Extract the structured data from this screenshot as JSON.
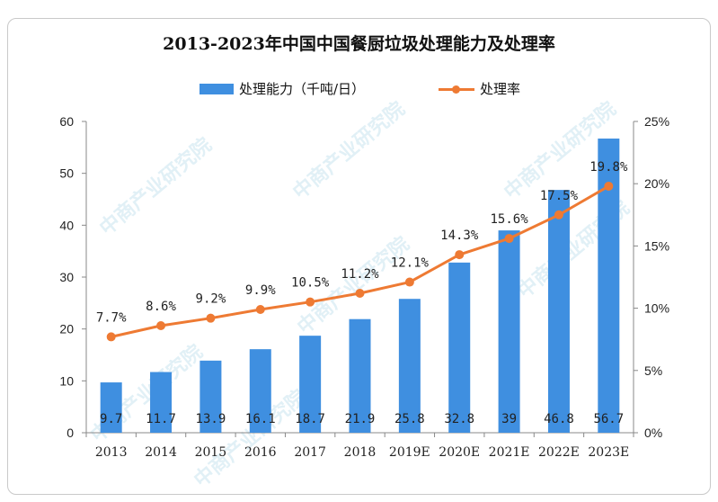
{
  "chart_data": {
    "type": "bar",
    "title": "2013-2023年中国中国餐厨垃圾处理能力及处理率",
    "categories": [
      "2013",
      "2014",
      "2015",
      "2016",
      "2017",
      "2018",
      "2019E",
      "2020E",
      "2021E",
      "2022E",
      "2023E"
    ],
    "series": [
      {
        "name": "处理能力（千吨/日）",
        "type": "bar",
        "axis": "left",
        "color": "#3f8fe0",
        "values": [
          9.7,
          11.7,
          13.9,
          16.1,
          18.7,
          21.9,
          25.8,
          32.8,
          39,
          46.8,
          56.7
        ],
        "labels": [
          "9.7",
          "11.7",
          "13.9",
          "16.1",
          "18.7",
          "21.9",
          "25.8",
          "32.8",
          "39",
          "46.8",
          "56.7"
        ]
      },
      {
        "name": "处理率",
        "type": "line",
        "axis": "right",
        "color": "#ee7a33",
        "values": [
          7.7,
          8.6,
          9.2,
          9.9,
          10.5,
          11.2,
          12.1,
          14.3,
          15.6,
          17.5,
          19.8
        ],
        "labels": [
          "7.7%",
          "8.6%",
          "9.2%",
          "9.9%",
          "10.5%",
          "11.2%",
          "12.1%",
          "14.3%",
          "15.6%",
          "17.5%",
          "19.8%"
        ]
      }
    ],
    "y_left": {
      "min": 0,
      "max": 60,
      "ticks": [
        "0",
        "10",
        "20",
        "30",
        "40",
        "50",
        "60"
      ]
    },
    "y_right": {
      "min": 0,
      "max": 25,
      "ticks": [
        "0%",
        "5%",
        "10%",
        "15%",
        "20%",
        "25%"
      ]
    },
    "grid": false,
    "legend_position": "top"
  },
  "watermark": "中商产业研究院"
}
